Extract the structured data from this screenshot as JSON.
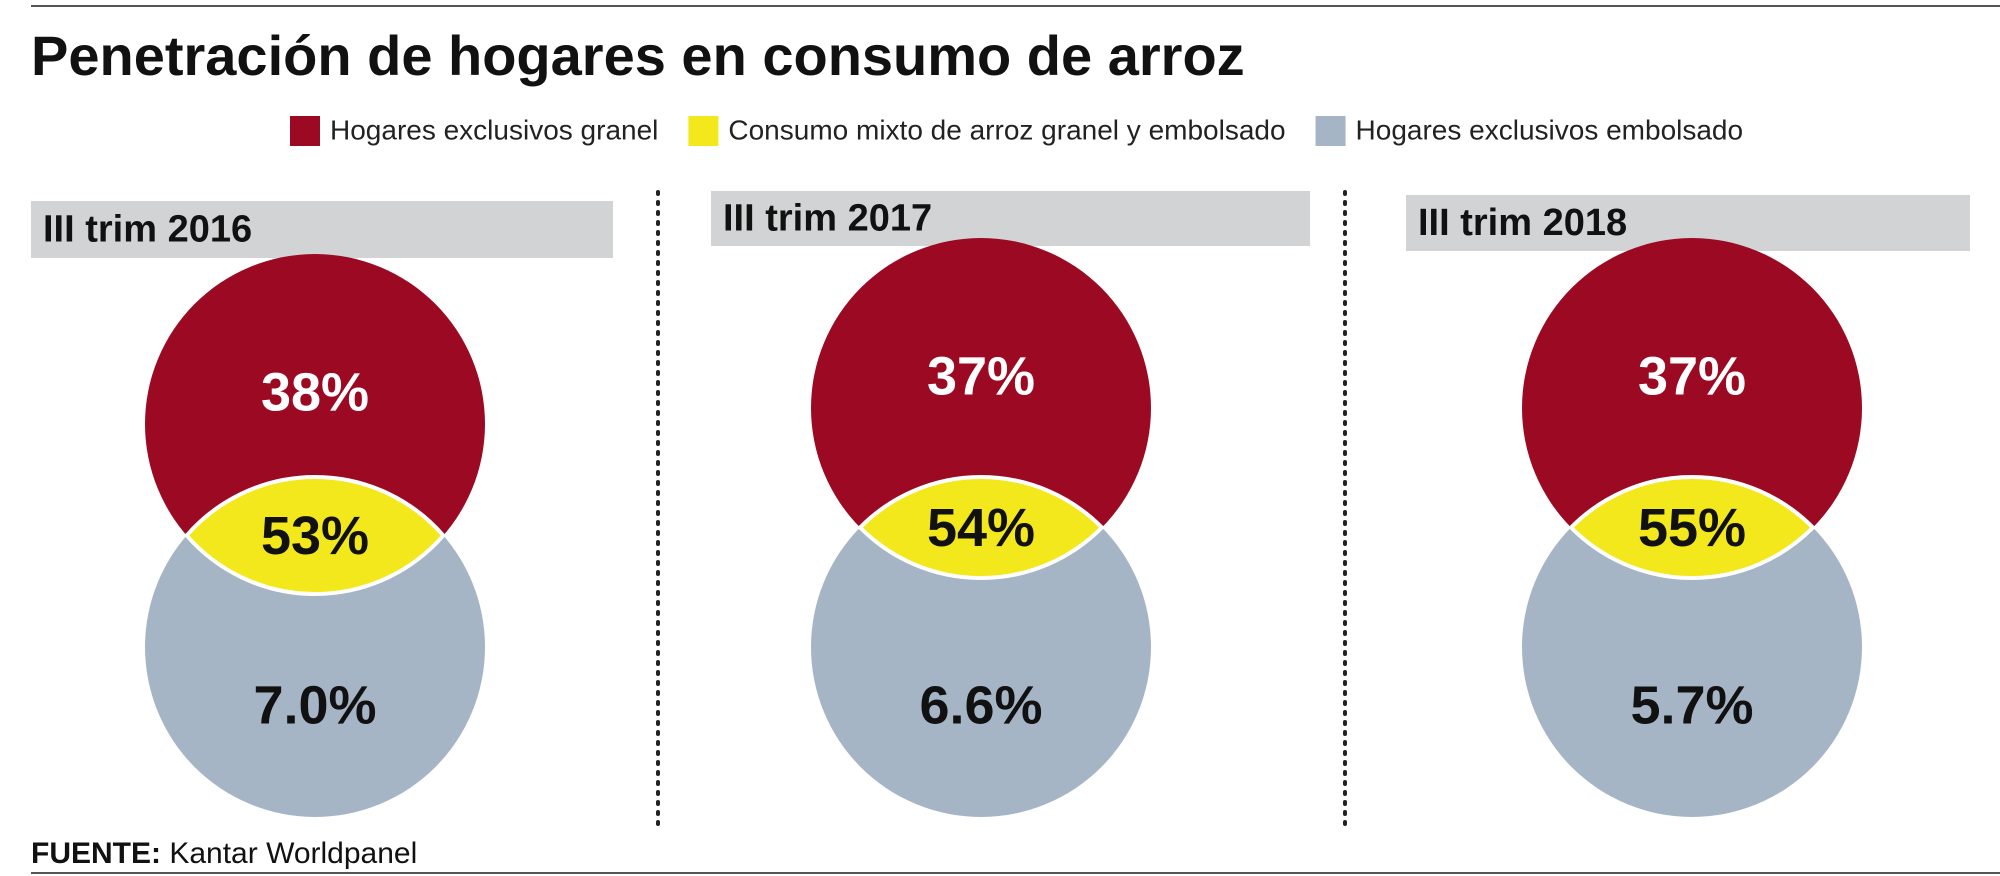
{
  "chart_data": {
    "type": "venn",
    "title": "Penetración de hogares en consumo de arroz",
    "categories": [
      "III trim 2016",
      "III trim 2017",
      "III trim 2018"
    ],
    "series": [
      {
        "name": "Hogares exclusivos granel",
        "color": "#9b0a22",
        "values": [
          38,
          37,
          37
        ],
        "value_labels": [
          "38%",
          "37%",
          "37%"
        ]
      },
      {
        "name": "Consumo mixto de arroz granel y embolsado",
        "color": "#f2e81c",
        "values": [
          53,
          54,
          55
        ],
        "value_labels": [
          "53%",
          "54%",
          "55%"
        ]
      },
      {
        "name": "Hogares exclusivos embolsado",
        "color": "#a5b5c6",
        "values": [
          7.0,
          6.6,
          5.7
        ],
        "value_labels": [
          "7.0%",
          "6.6%",
          "5.7%"
        ]
      }
    ],
    "source": {
      "label": "FUENTE:",
      "text": "Kantar Worldpanel"
    }
  }
}
